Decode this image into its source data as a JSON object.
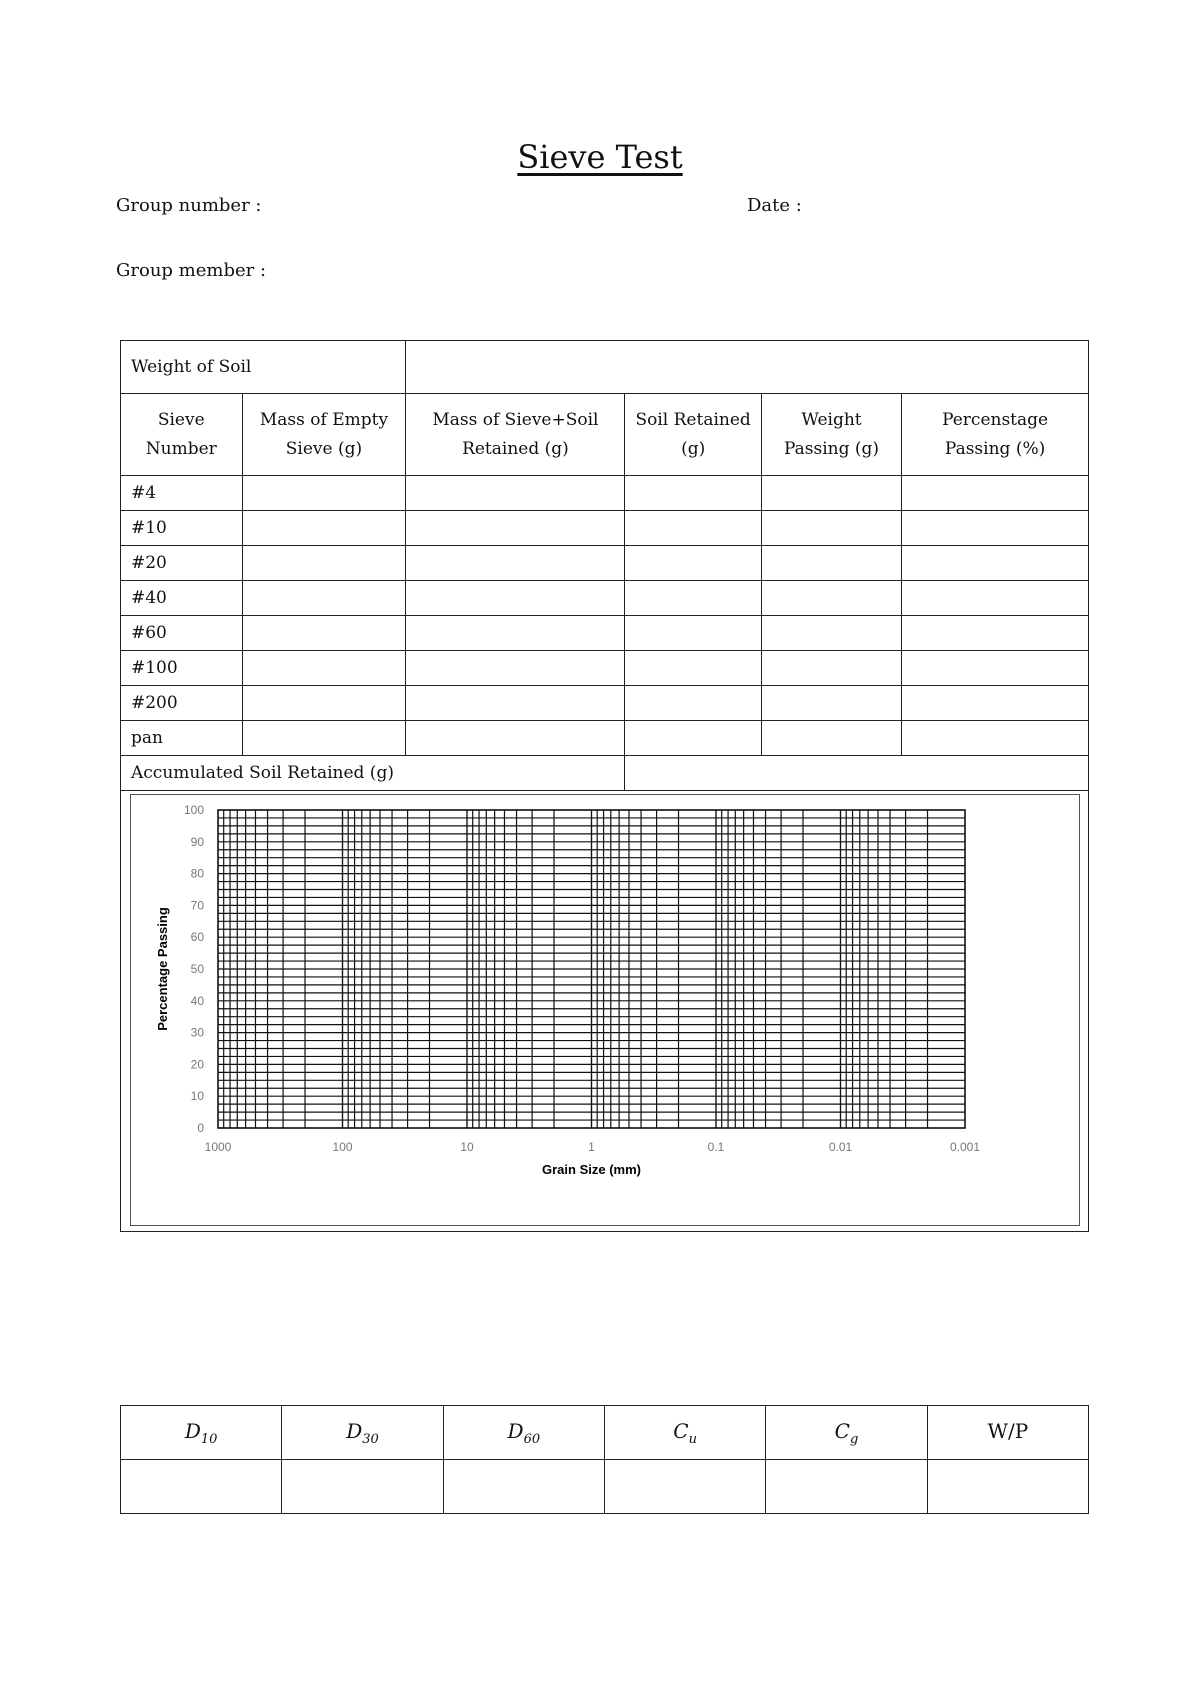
{
  "title": "Sieve Test",
  "fields": {
    "group_number": "Group number :",
    "date": "Date :",
    "group_member": "Group member :"
  },
  "table": {
    "weight_of_soil": "Weight of Soil",
    "headers": [
      "Sieve Number",
      "Mass of Empty Sieve (g)",
      "Mass of Sieve+Soil Retained (g)",
      "Soil Retained (g)",
      "Weight Passing (g)",
      "Percenstage Passing (%)"
    ],
    "rows": [
      "#4",
      "#10",
      "#20",
      "#40",
      "#60",
      "#100",
      "#200",
      "pan"
    ],
    "accumulated": "Accumulated Soil Retained (g)"
  },
  "chart_data": {
    "type": "line",
    "xlabel": "Grain Size (mm)",
    "ylabel": "Percentage Passing",
    "x_scale": "log",
    "x_reversed": true,
    "xlim": [
      1000,
      0.001
    ],
    "ylim": [
      0,
      100
    ],
    "x_ticks": [
      "1000",
      "100",
      "10",
      "1",
      "0.1",
      "0.01",
      "0.001"
    ],
    "y_ticks": [
      "0",
      "10",
      "20",
      "30",
      "40",
      "50",
      "60",
      "70",
      "80",
      "90",
      "100"
    ],
    "grid": true,
    "series": []
  },
  "results": {
    "headers": [
      {
        "main": "D",
        "sub": "10"
      },
      {
        "main": "D",
        "sub": "30"
      },
      {
        "main": "D",
        "sub": "60"
      },
      {
        "main": "C",
        "sub": "u"
      },
      {
        "main": "C",
        "sub": "g"
      },
      {
        "main": "W/P",
        "sub": ""
      }
    ]
  }
}
